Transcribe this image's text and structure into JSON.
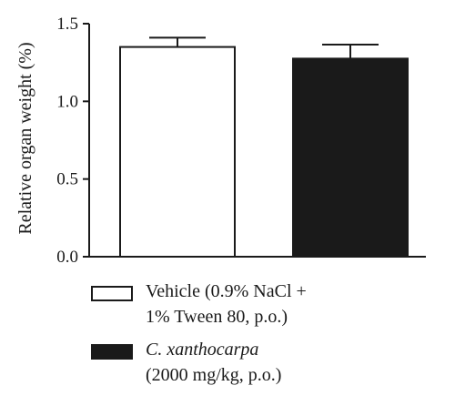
{
  "chart_data": {
    "type": "bar",
    "ylabel": "Relative organ weight (%)",
    "ylim": [
      0,
      1.5
    ],
    "yticks": [
      "0.0",
      "0.5",
      "1.0",
      "1.5"
    ],
    "ytick_values": [
      0,
      0.5,
      1.0,
      1.5
    ],
    "categories": [
      "Vehicle",
      "C. xanthocarpa"
    ],
    "values": [
      1.35,
      1.275
    ],
    "errors": [
      0.06,
      0.09
    ],
    "colors": [
      "#ffffff",
      "#1a1a1a"
    ],
    "axis_color": "#1a1a1a"
  },
  "legend": [
    {
      "line1": "Vehicle (0.9% NaCl +",
      "line2": "1% Tween 80, p.o.)",
      "swatch_color": "#ffffff"
    },
    {
      "line1": "C. xanthocarpa",
      "line2": "(2000 mg/kg, p.o.)",
      "swatch_color": "#1a1a1a"
    }
  ]
}
